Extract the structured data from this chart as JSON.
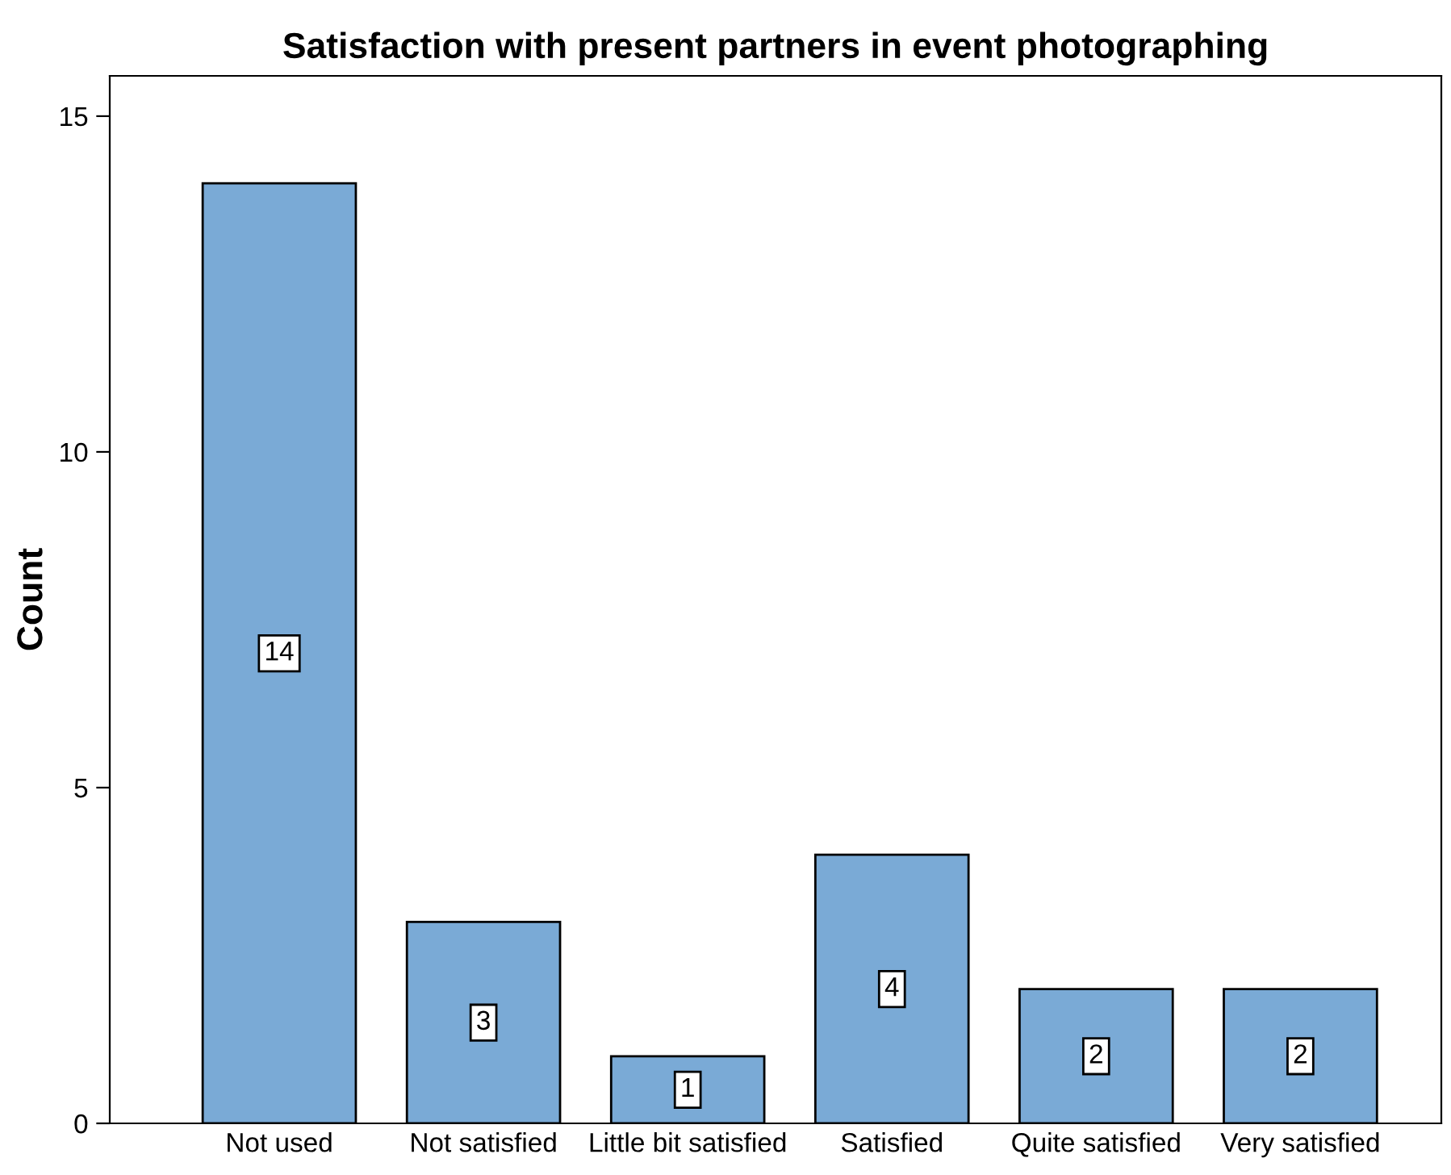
{
  "chart_data": {
    "type": "bar",
    "title": "Satisfaction with present partners in event photographing",
    "ylabel": "Count",
    "categories": [
      "Not used",
      "Not satisfied",
      "Little bit satisfied",
      "Satisfied",
      "Quite satisfied",
      "Very satisfied"
    ],
    "values": [
      14,
      3,
      1,
      4,
      2,
      2
    ],
    "color": "#7aaad6",
    "ylim": [
      0,
      15.6
    ],
    "yticks": [
      0,
      5,
      10,
      15
    ],
    "grid": false,
    "legend": false,
    "data_labels": true
  }
}
